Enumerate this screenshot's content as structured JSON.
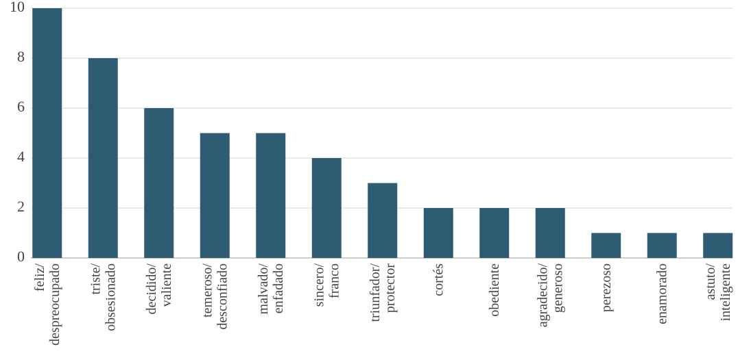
{
  "chart_data": {
    "type": "bar",
    "title": "",
    "xlabel": "",
    "ylabel": "",
    "categories": [
      [
        "feliz/",
        "despreocupado"
      ],
      [
        "triste/",
        "obsesionado"
      ],
      [
        "decidido/",
        "valiente"
      ],
      [
        "temeroso/",
        "desconfiado"
      ],
      [
        "malvado/",
        "enfadado"
      ],
      [
        "sincero/",
        "franco"
      ],
      [
        "triunfador/",
        "protector"
      ],
      [
        "cortés"
      ],
      [
        "obediente"
      ],
      [
        "agradecido/",
        "generoso"
      ],
      [
        "perezoso"
      ],
      [
        "enamorado"
      ],
      [
        "astuto/",
        "inteligente"
      ]
    ],
    "values": [
      10,
      8,
      6,
      5,
      5,
      4,
      3,
      2,
      2,
      2,
      1,
      1,
      1
    ],
    "ylim": [
      0,
      10
    ],
    "yticks": [
      0,
      2,
      4,
      6,
      8,
      10
    ],
    "grid": true,
    "legend": "none",
    "colors": {
      "bar": "#2d5c73",
      "grid": "#d6d6d6",
      "text": "#444444"
    }
  }
}
